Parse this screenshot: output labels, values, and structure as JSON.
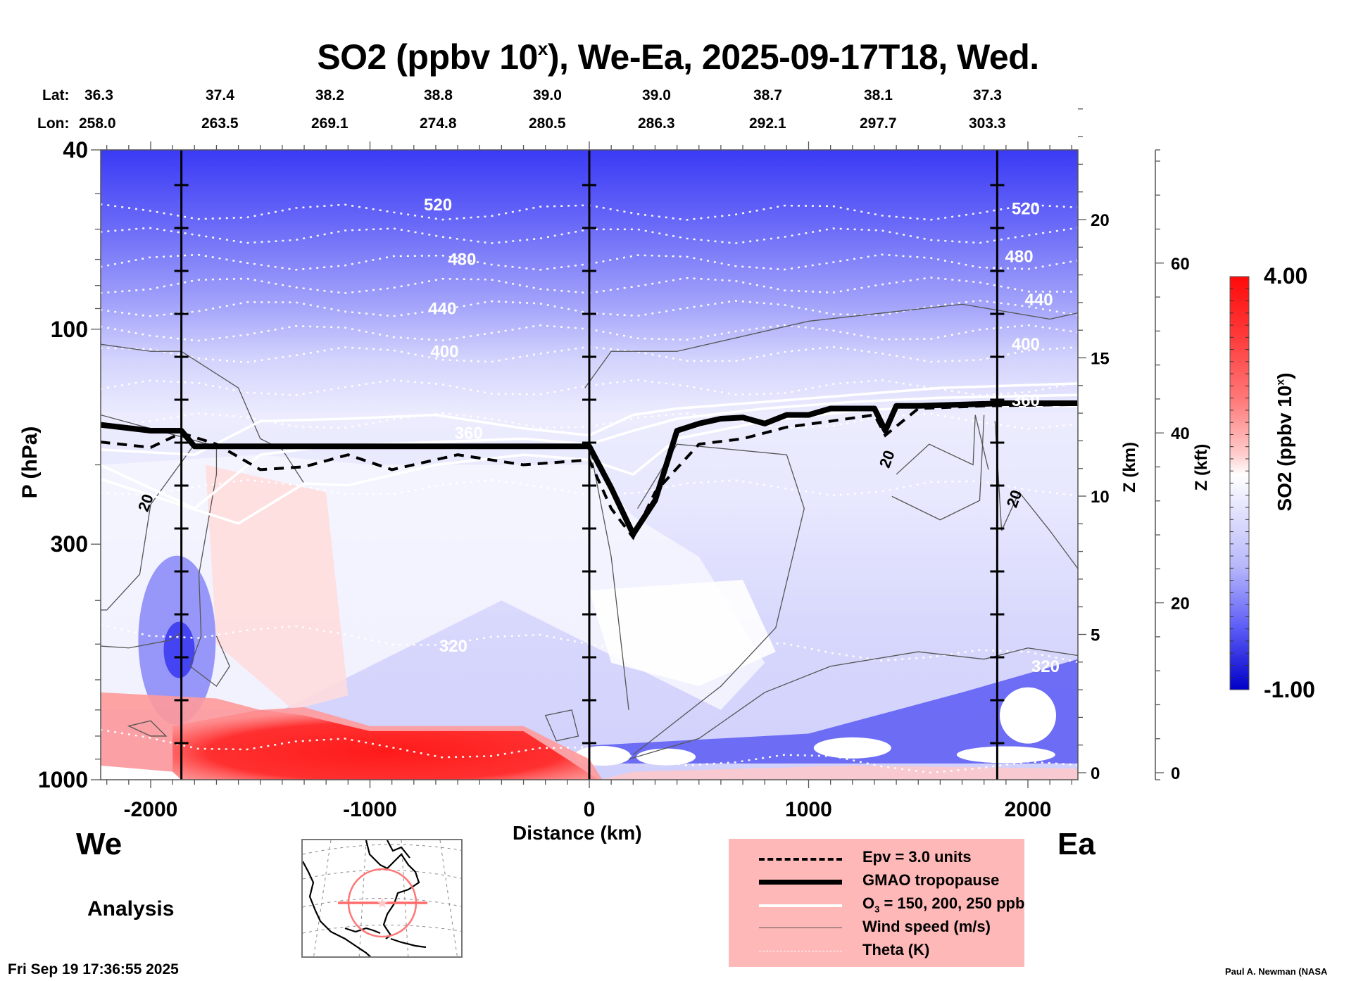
{
  "chart_data": {
    "type": "heatmap",
    "title": "SO2 (ppbv 10^x), We-Ea, 2025-09-17T18, Wed.",
    "title_parts": {
      "main": "SO2 (ppbv 10",
      "sup": "x",
      "rest": "), We-Ea, 2025-09-17T18, Wed."
    },
    "xlabel": "Distance (km)",
    "ylabel": "P (hPa)",
    "x_range_km": [
      -2230,
      2225
    ],
    "x_ticks": [
      -2000,
      -1000,
      0,
      1000,
      2000
    ],
    "x_tick_labels": [
      "-2000",
      "-1000",
      "0",
      "1000",
      "2000"
    ],
    "y_range_hPa": [
      1000,
      40
    ],
    "y_scale": "log",
    "y_ticks": [
      40,
      100,
      300,
      1000
    ],
    "y_tick_labels": [
      "40",
      "100",
      "300",
      "1000"
    ],
    "right_axis_km": {
      "label": "Z (km)",
      "ticks": [
        0,
        5,
        10,
        15,
        20
      ],
      "tick_labels": [
        "0",
        "5",
        "10",
        "15",
        "20"
      ]
    },
    "right_axis_kft": {
      "label": "Z (kft)",
      "ticks": [
        0,
        20,
        40,
        60
      ],
      "tick_labels": [
        "0",
        "20",
        "40",
        "60"
      ]
    },
    "colorbar": {
      "label_main": "SO2 (ppbv 10",
      "label_sup": "x",
      "label_end": ")",
      "min": -1.0,
      "max": 4.0,
      "min_label": "-1.00",
      "max_label": "4.00",
      "colors": [
        "#0000c8",
        "#1414f0",
        "#3a3af5",
        "#6a6af8",
        "#9a9afa",
        "#c4c4fc",
        "#e6e6fe",
        "#ffffff",
        "#ffe0e0",
        "#ffbcbc",
        "#ff9090",
        "#ff6060",
        "#ff3030",
        "#ff0a0a"
      ]
    },
    "top_axis": {
      "lat_label": "Lat:",
      "lon_label": "Lon:",
      "lat": [
        "36.3",
        "37.4",
        "38.2",
        "38.8",
        "39.0",
        "39.0",
        "38.7",
        "38.1",
        "37.3"
      ],
      "lon": [
        "258.0",
        "263.5",
        "269.1",
        "274.8",
        "280.5",
        "286.3",
        "292.1",
        "297.7",
        "303.3"
      ]
    },
    "vertical_markers_km": [
      -1860,
      0,
      1860
    ],
    "theta_contours": [
      {
        "value": 520,
        "label": "520",
        "p": 55
      },
      {
        "value": 500,
        "label": "",
        "p": 62
      },
      {
        "value": 480,
        "label": "480",
        "p": 71
      },
      {
        "value": 460,
        "label": "",
        "p": 80
      },
      {
        "value": 440,
        "label": "440",
        "p": 90
      },
      {
        "value": 420,
        "label": "",
        "p": 102
      },
      {
        "value": 400,
        "label": "400",
        "p": 114
      },
      {
        "value": 380,
        "label": "",
        "p": 135
      },
      {
        "value": 360,
        "label": "360",
        "p": 160
      },
      {
        "value": 340,
        "label": "",
        "p": 225
      },
      {
        "value": 320,
        "label": "320",
        "p": 500
      },
      {
        "value": 300,
        "label": "",
        "p": 880
      }
    ],
    "theta_labels": [
      {
        "text": "520",
        "x_km": -690,
        "p": 53
      },
      {
        "text": "480",
        "x_km": -580,
        "p": 70
      },
      {
        "text": "440",
        "x_km": -670,
        "p": 90
      },
      {
        "text": "400",
        "x_km": -660,
        "p": 112
      },
      {
        "text": "360",
        "x_km": -550,
        "p": 170
      },
      {
        "text": "320",
        "x_km": -620,
        "p": 505
      },
      {
        "text": "520",
        "x_km": 1990,
        "p": 54
      },
      {
        "text": "480",
        "x_km": 1960,
        "p": 69
      },
      {
        "text": "440",
        "x_km": 2050,
        "p": 86
      },
      {
        "text": "400",
        "x_km": 1990,
        "p": 108
      },
      {
        "text": "360",
        "x_km": 1990,
        "p": 144
      },
      {
        "text": "320",
        "x_km": 2080,
        "p": 560
      }
    ],
    "wind_labels": [
      {
        "text": "20",
        "x_km": -2000,
        "p": 245
      },
      {
        "text": "20",
        "x_km": 1380,
        "p": 196
      },
      {
        "text": "20",
        "x_km": 1960,
        "p": 240
      }
    ],
    "tropopause_p": {
      "x_km": [
        -2230,
        -2000,
        -1860,
        -1800,
        -1500,
        -1400,
        -1000,
        -500,
        0,
        100,
        200,
        300,
        400,
        500,
        600,
        700,
        800,
        900,
        1000,
        1100,
        1200,
        1300,
        1350,
        1400,
        1500,
        1700,
        1900,
        2225
      ],
      "p": [
        163,
        168,
        168,
        182,
        182,
        182,
        182,
        182,
        182,
        225,
        285,
        240,
        168,
        162,
        158,
        157,
        162,
        155,
        155,
        150,
        150,
        150,
        168,
        148,
        148,
        147,
        146,
        146
      ]
    },
    "epv_p": {
      "x_km": [
        -2230,
        -2000,
        -1860,
        -1700,
        -1500,
        -1300,
        -1100,
        -900,
        -600,
        -300,
        0,
        100,
        200,
        300,
        500,
        700,
        900,
        1100,
        1300,
        1350,
        1500,
        1800,
        2225
      ],
      "p": [
        178,
        183,
        170,
        180,
        205,
        202,
        190,
        205,
        190,
        200,
        195,
        250,
        290,
        230,
        180,
        175,
        165,
        160,
        155,
        172,
        150,
        148,
        147
      ]
    },
    "o3_contours": [
      {
        "x_km": [
          -2230,
          -1800,
          -1500,
          -1100,
          -700,
          -300,
          0,
          200,
          400,
          800,
          1200,
          1600,
          2225
        ],
        "p": [
          185,
          190,
          160,
          158,
          155,
          166,
          172,
          155,
          150,
          145,
          140,
          135,
          132
        ]
      },
      {
        "x_km": [
          -2230,
          -1800,
          -1500,
          -1200,
          -700,
          -300,
          0,
          200,
          400,
          800,
          1200,
          1600,
          2225
        ],
        "p": [
          200,
          250,
          190,
          182,
          178,
          175,
          180,
          168,
          158,
          150,
          145,
          142,
          140
        ]
      },
      {
        "x_km": [
          -2230,
          -1600,
          -1300,
          -1100,
          -700,
          -300,
          0,
          200,
          400,
          800,
          1200,
          1600,
          2225
        ],
        "p": [
          215,
          270,
          220,
          222,
          200,
          190,
          195,
          210,
          175,
          160,
          152,
          148,
          148
        ]
      }
    ]
  },
  "labels": {
    "west": "We",
    "east": "Ea",
    "analysis": "Analysis",
    "timestamp": "Fri Sep 19 17:36:55 2025",
    "credit": "Paul A. Newman (NASA"
  },
  "legend": {
    "background": "#ffb8b8",
    "items": [
      {
        "label": "Epv = 3.0 units",
        "style": "dashed-black"
      },
      {
        "label": "GMAO tropopause",
        "style": "thick-black"
      },
      {
        "label_main": "O",
        "label_sub": "3",
        "label_rest": " = 150, 200, 250 ppb",
        "style": "white"
      },
      {
        "label": "Wind speed (m/s)",
        "style": "thin-gray"
      },
      {
        "label": "Theta (K)",
        "style": "dotted-white"
      }
    ]
  },
  "map_inset": {
    "projection": "North America",
    "marker_color": "#ff6b6b"
  }
}
